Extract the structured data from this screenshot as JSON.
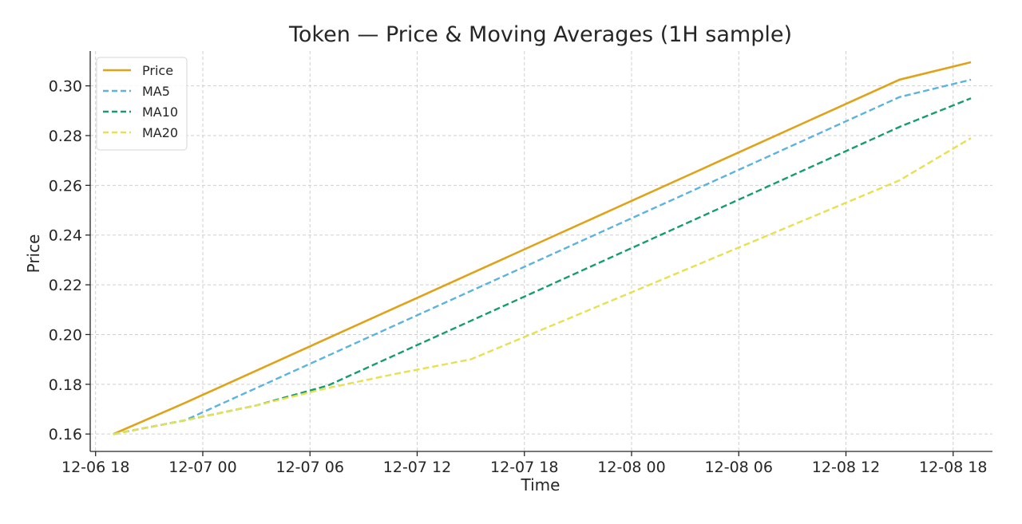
{
  "chart_data": {
    "type": "line",
    "title": "Token — Price & Moving Averages (1H sample)",
    "xlabel": "Time",
    "ylabel": "Price",
    "x_hours": [
      0,
      4,
      8,
      12,
      16,
      20,
      24,
      28,
      32,
      36,
      40,
      44,
      48
    ],
    "x_start": "12-06 19",
    "xlim_hours": [
      -1.3,
      49.2
    ],
    "xticks": [
      {
        "hours": -1,
        "label": "12-06 18"
      },
      {
        "hours": 5,
        "label": "12-07 00"
      },
      {
        "hours": 11,
        "label": "12-07 06"
      },
      {
        "hours": 17,
        "label": "12-07 12"
      },
      {
        "hours": 23,
        "label": "12-07 18"
      },
      {
        "hours": 29,
        "label": "12-08 00"
      },
      {
        "hours": 35,
        "label": "12-08 06"
      },
      {
        "hours": 41,
        "label": "12-08 12"
      },
      {
        "hours": 47,
        "label": "12-08 18"
      }
    ],
    "ylim": [
      0.153,
      0.314
    ],
    "yticks": [
      {
        "value": 0.16,
        "label": "0.16"
      },
      {
        "value": 0.18,
        "label": "0.18"
      },
      {
        "value": 0.2,
        "label": "0.20"
      },
      {
        "value": 0.22,
        "label": "0.22"
      },
      {
        "value": 0.24,
        "label": "0.24"
      },
      {
        "value": 0.26,
        "label": "0.26"
      },
      {
        "value": 0.28,
        "label": "0.28"
      },
      {
        "value": 0.3,
        "label": "0.30"
      }
    ],
    "grid": true,
    "legend_position": "top-left",
    "series": [
      {
        "name": "Price",
        "color": "#E0A219",
        "dashed": false,
        "values": [
          0.16,
          0.1725,
          0.1855,
          0.1985,
          0.2115,
          0.2245,
          0.2375,
          0.2505,
          0.2635,
          0.2765,
          0.2895,
          0.3025,
          0.3095
        ]
      },
      {
        "name": "MA5",
        "color": "#5BB4DF",
        "dashed": true,
        "values": [
          0.16,
          0.1655,
          0.1785,
          0.1915,
          0.2045,
          0.2175,
          0.2305,
          0.2435,
          0.2565,
          0.2695,
          0.2825,
          0.2955,
          0.3025
        ]
      },
      {
        "name": "MA10",
        "color": "#169C6E",
        "dashed": true,
        "values": [
          0.16,
          0.1655,
          0.1715,
          0.1795,
          0.1925,
          0.2055,
          0.2185,
          0.2315,
          0.2445,
          0.2575,
          0.2705,
          0.2835,
          0.295
        ]
      },
      {
        "name": "MA20",
        "color": "#E6E14E",
        "dashed": true,
        "values": [
          0.16,
          0.1655,
          0.1715,
          0.1785,
          0.1845,
          0.19,
          0.202,
          0.214,
          0.226,
          0.238,
          0.25,
          0.262,
          0.279
        ]
      }
    ]
  }
}
